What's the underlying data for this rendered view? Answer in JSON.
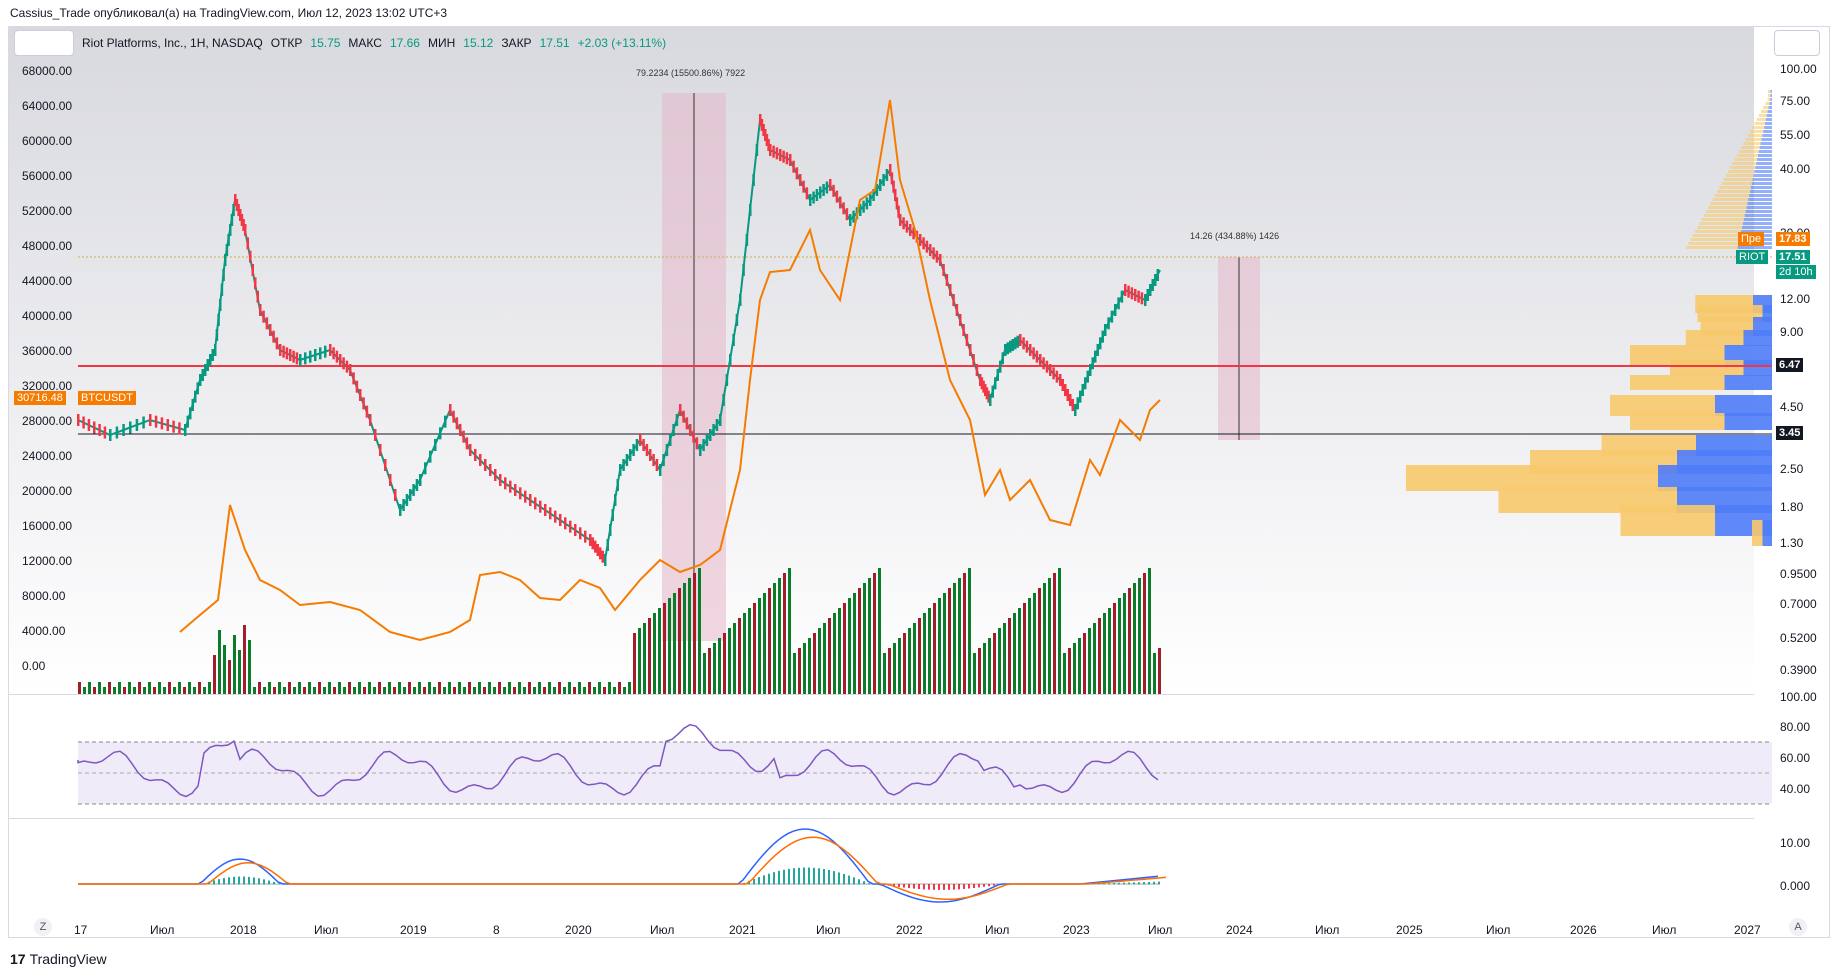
{
  "header": {
    "published": "Cassius_Trade опубликовал(а) на TradingView.com, Июл 12, 2023 13:02 UTC+3"
  },
  "legend": {
    "symbol": "Riot Platforms, Inc., 1H, NASDAQ",
    "open_label": "ОТКР",
    "open": "15.75",
    "high_label": "МАКС",
    "high": "17.66",
    "low_label": "МИН",
    "low": "15.12",
    "close_label": "ЗАКР",
    "close": "17.51",
    "change": "+2.03 (+13.11%)"
  },
  "left_axis": [
    "68000.00",
    "64000.00",
    "60000.00",
    "56000.00",
    "52000.00",
    "48000.00",
    "44000.00",
    "40000.00",
    "36000.00",
    "32000.00",
    "28000.00",
    "24000.00",
    "20000.00",
    "16000.00",
    "12000.00",
    "8000.00",
    "4000.00",
    "0.00"
  ],
  "right_axis": [
    "100.00",
    "75.00",
    "55.00",
    "40.00",
    "30.00",
    "12.00",
    "9.00",
    "4.50",
    "2.50",
    "1.80",
    "1.30",
    "0.9500",
    "0.7000",
    "0.5200",
    "0.3900"
  ],
  "rsi_axis": [
    "100.00",
    "80.00",
    "60.00",
    "40.00"
  ],
  "macd_axis": [
    "10.00",
    "0.000"
  ],
  "time_axis": [
    "17",
    "Июл",
    "2018",
    "Июл",
    "2019",
    "8",
    "2020",
    "Июл",
    "2021",
    "Июл",
    "2022",
    "Июл",
    "2023",
    "Июл",
    "2024",
    "Июл",
    "2025",
    "Июл",
    "2026",
    "Июл",
    "2027"
  ],
  "tags": {
    "btc_price": "30716.48",
    "btc_symbol": "BTCUSDT",
    "pre_label": "Пре",
    "pre_value": "17.83",
    "riot_symbol": "RIOT",
    "riot_price": "17.51",
    "riot_countdown": "2d 10h",
    "red_level": "6.47",
    "black_level": "3.45"
  },
  "annotations": {
    "range1": "79.2234 (15500.86%) 7922",
    "range2": "14.26 (434.88%) 1426"
  },
  "corner": {
    "left": "Z",
    "right": "A"
  },
  "footer": {
    "brand": "TradingView"
  },
  "colors": {
    "up": "#089981",
    "down": "#f23645",
    "btc": "#f57c00",
    "rsi": "#7e57c2",
    "macd": "#2962ff",
    "signal": "#ff6d00",
    "profile_blue": "#4f7cf7",
    "profile_yellow": "#f7c96b",
    "red_line": "#f23645"
  }
}
